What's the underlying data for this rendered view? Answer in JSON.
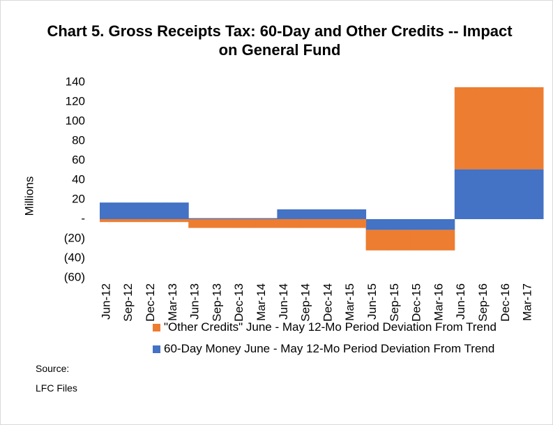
{
  "chart_data": {
    "type": "stacked_bar",
    "title": "Chart 5. Gross Receipts Tax: 60-Day and Other Credits -- Impact on General Fund",
    "y_label": "Millions",
    "source": "Source: LFC Files",
    "categories": [
      "Jun-12",
      "Sep-12",
      "Dec-12",
      "Mar-13",
      "Jun-13",
      "Sep-13",
      "Dec-13",
      "Mar-14",
      "Jun-14",
      "Sep-14",
      "Dec-14",
      "Mar-15",
      "Jun-15",
      "Sep-15",
      "Dec-15",
      "Mar-16",
      "Jun-16",
      "Sep-16",
      "Dec-16",
      "Mar-17"
    ],
    "series": [
      {
        "name": "60-Day Money June - May 12-Mo Period Deviation From Trend",
        "color": "#4472c4",
        "values": [
          17,
          17,
          17,
          17,
          1,
          1,
          1,
          1,
          10,
          10,
          10,
          10,
          -11,
          -11,
          -11,
          -11,
          51,
          51,
          51,
          51
        ]
      },
      {
        "name": "\"Other Credits\" June - May 12-Mo Period Deviation From Trend",
        "color": "#ed7d31",
        "values": [
          -3,
          -3,
          -3,
          -3,
          -9,
          -9,
          -9,
          -9,
          -9,
          -9,
          -9,
          -9,
          -21,
          -21,
          -21,
          -21,
          84,
          84,
          84,
          84
        ]
      }
    ],
    "ylim": [
      -60,
      140
    ],
    "yticks": [
      {
        "value": -60,
        "label": "(60)"
      },
      {
        "value": -40,
        "label": "(40)"
      },
      {
        "value": -20,
        "label": "(20)"
      },
      {
        "value": 0,
        "label": "-"
      },
      20,
      40,
      60,
      80,
      100,
      120,
      140
    ],
    "grid": false
  }
}
